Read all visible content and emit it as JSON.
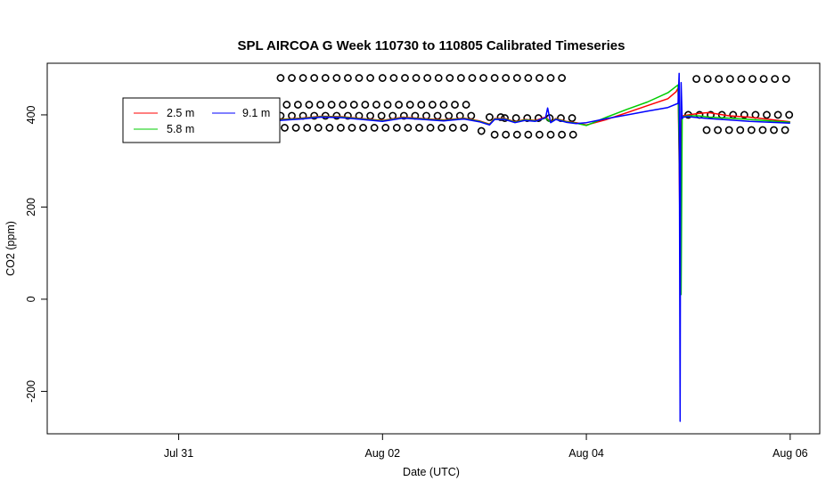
{
  "chart_data": {
    "type": "line",
    "title": "SPL AIRCOA G  Week 110730 to 110805  Calibrated Timeseries",
    "xlabel": "Date (UTC)",
    "ylabel": "CO2 (ppm)",
    "x_tick_labels": [
      "Jul 31",
      "Aug 02",
      "Aug 04",
      "Aug 06"
    ],
    "x_tick_values": [
      0,
      2,
      4,
      6
    ],
    "xlim": [
      -1.29,
      6.29
    ],
    "y_tick_labels": [
      "-200",
      "0",
      "200",
      "400"
    ],
    "y_ticks": [
      -200,
      0,
      200,
      400
    ],
    "ylim": [
      -292,
      512
    ],
    "grid": false,
    "legend": {
      "position": "top-left",
      "entries": [
        {
          "label": "2.5 m",
          "color": "#ff0000"
        },
        {
          "label": "5.8 m",
          "color": "#00cc00"
        },
        {
          "label": "9.1 m",
          "color": "#0000ff"
        }
      ]
    },
    "series": [
      {
        "name": "2.5 m",
        "color": "#ff0000",
        "x": [
          0.98,
          1.2,
          1.4,
          1.6,
          1.8,
          2.0,
          2.2,
          2.4,
          2.6,
          2.8,
          2.95,
          3.05,
          3.1,
          3.2,
          3.3,
          3.4,
          3.5,
          3.6,
          3.65,
          3.7,
          3.8,
          3.9,
          4.0,
          4.2,
          4.4,
          4.6,
          4.8,
          4.88,
          4.9,
          4.91,
          4.92,
          4.93,
          4.95,
          5.0,
          5.1,
          5.2,
          5.4,
          5.6,
          5.8,
          6.0
        ],
        "y": [
          390,
          393,
          397,
          396,
          392,
          388,
          395,
          392,
          389,
          393,
          387,
          380,
          392,
          392,
          385,
          390,
          388,
          395,
          385,
          392,
          386,
          383,
          378,
          390,
          405,
          420,
          435,
          450,
          458,
          300,
          110,
          395,
          398,
          400,
          403,
          405,
          398,
          395,
          390,
          385
        ]
      },
      {
        "name": "5.8 m",
        "color": "#00cc00",
        "x": [
          0.98,
          1.2,
          1.4,
          1.6,
          1.8,
          2.0,
          2.2,
          2.4,
          2.6,
          2.8,
          2.95,
          3.05,
          3.1,
          3.2,
          3.3,
          3.4,
          3.5,
          3.6,
          3.65,
          3.7,
          3.8,
          3.9,
          4.0,
          4.2,
          4.4,
          4.6,
          4.8,
          4.9,
          4.92,
          4.93,
          4.94,
          4.95,
          5.0,
          5.1,
          5.2,
          5.4,
          5.6,
          5.8,
          6.0
        ],
        "y": [
          389,
          392,
          396,
          395,
          391,
          387,
          394,
          391,
          388,
          392,
          386,
          379,
          391,
          391,
          384,
          389,
          387,
          393,
          384,
          391,
          385,
          382,
          377,
          395,
          412,
          428,
          448,
          465,
          200,
          10,
          390,
          396,
          398,
          398,
          395,
          393,
          390,
          387,
          384
        ]
      },
      {
        "name": "9.1 m",
        "color": "#0000ff",
        "x": [
          0.98,
          1.2,
          1.4,
          1.6,
          1.8,
          2.0,
          2.2,
          2.4,
          2.6,
          2.8,
          2.95,
          3.05,
          3.1,
          3.2,
          3.3,
          3.4,
          3.5,
          3.6,
          3.62,
          3.65,
          3.7,
          3.8,
          3.9,
          4.0,
          4.2,
          4.4,
          4.6,
          4.8,
          4.9,
          4.91,
          4.92,
          4.925,
          4.93,
          4.94,
          4.95,
          5.0,
          5.1,
          5.2,
          5.4,
          5.6,
          5.8,
          6.0
        ],
        "y": [
          388,
          391,
          395,
          394,
          390,
          386,
          393,
          390,
          387,
          391,
          385,
          378,
          390,
          390,
          383,
          388,
          386,
          394,
          415,
          383,
          390,
          384,
          381,
          383,
          392,
          400,
          408,
          416,
          425,
          490,
          -265,
          380,
          470,
          392,
          395,
          396,
          394,
          392,
          389,
          386,
          384,
          382
        ]
      }
    ],
    "markers": {
      "style": "open circle",
      "color": "#000000",
      "rows": [
        {
          "y": 480,
          "x_start": 1.0,
          "x_end": 1.9,
          "step": 0.11
        },
        {
          "y": 480,
          "x_start": 2.0,
          "x_end": 3.82,
          "step": 0.11
        },
        {
          "y": 422,
          "x_start": 1.06,
          "x_end": 2.88,
          "step": 0.11
        },
        {
          "y": 398,
          "x_start": 1.0,
          "x_end": 2.92,
          "step": 0.11
        },
        {
          "y": 372,
          "x_start": 1.04,
          "x_end": 2.9,
          "step": 0.11
        },
        {
          "y": 395,
          "x_start": 3.05,
          "x_end": 3.18,
          "step": 0.11
        },
        {
          "y": 393,
          "x_start": 3.2,
          "x_end": 3.9,
          "step": 0.11
        },
        {
          "y": 357,
          "x_start": 3.1,
          "x_end": 3.92,
          "step": 0.11
        },
        {
          "y": 365,
          "x_start": 2.97,
          "x_end": 3.0,
          "step": 0.11
        },
        {
          "y": 478,
          "x_start": 5.08,
          "x_end": 6.0,
          "step": 0.11
        },
        {
          "y": 400,
          "x_start": 5.0,
          "x_end": 6.0,
          "step": 0.11
        },
        {
          "y": 367,
          "x_start": 5.18,
          "x_end": 6.0,
          "step": 0.11
        }
      ]
    }
  }
}
